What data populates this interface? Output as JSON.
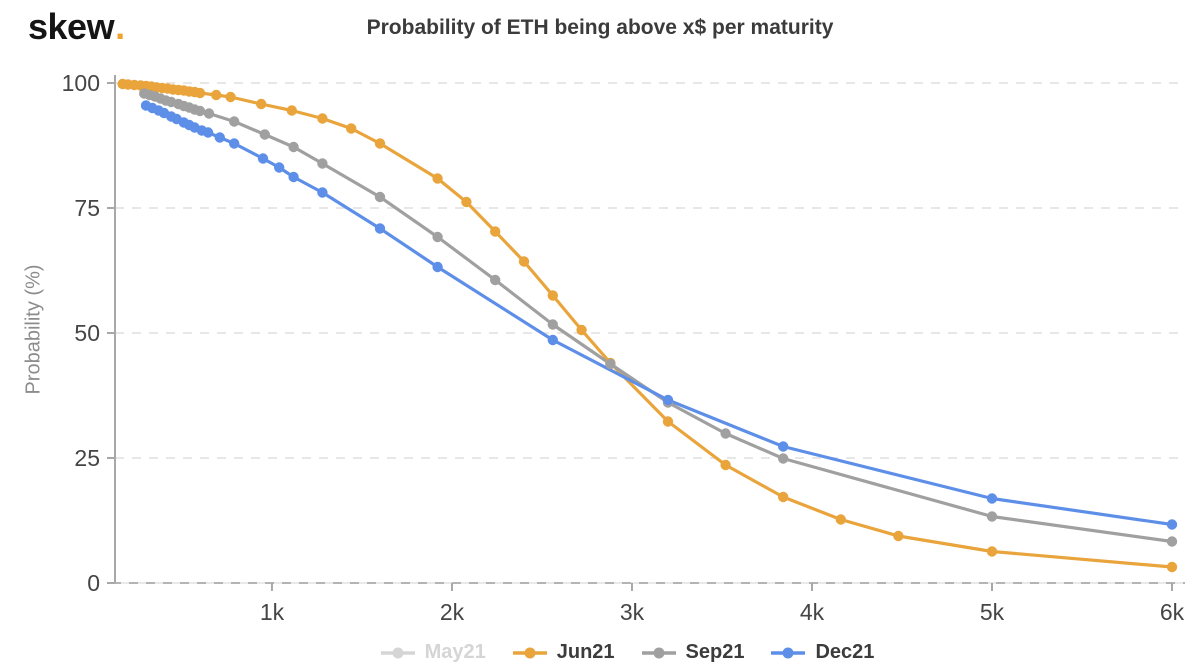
{
  "logo": {
    "text": "skew",
    "dot": "."
  },
  "title": "Probability of ETH being above x$ per maturity",
  "chart_data": {
    "type": "line",
    "title": "Probability of ETH being above x$ per maturity",
    "xlabel": "",
    "ylabel": "Probability (%)",
    "xlim": [
      128,
      6050
    ],
    "ylim": [
      0,
      100
    ],
    "grid": "horizontal-dashed",
    "legend_position": "bottom",
    "x_ticks": [
      {
        "value": 1000,
        "label": "1k"
      },
      {
        "value": 2000,
        "label": "2k"
      },
      {
        "value": 3000,
        "label": "3k"
      },
      {
        "value": 4000,
        "label": "4k"
      },
      {
        "value": 5000,
        "label": "5k"
      },
      {
        "value": 6000,
        "label": "6k"
      }
    ],
    "y_ticks": [
      {
        "value": 0,
        "label": "0"
      },
      {
        "value": 25,
        "label": "25"
      },
      {
        "value": 50,
        "label": "50"
      },
      {
        "value": 75,
        "label": "75"
      },
      {
        "value": 100,
        "label": "100"
      }
    ],
    "colors": {
      "axis": "#a8a8a8",
      "grid": "#e7e7e7",
      "tick_text": "#454545",
      "legend_active_text": "#3c3c3c",
      "logo_dot": "#f0a32c"
    },
    "series": [
      {
        "name": "May21",
        "color": "#d5d5d5",
        "hidden": true,
        "points": []
      },
      {
        "name": "Jun21",
        "color": "#e9a43c",
        "hidden": false,
        "points": [
          [
            170,
            99.8
          ],
          [
            200,
            99.7
          ],
          [
            235,
            99.6
          ],
          [
            270,
            99.5
          ],
          [
            300,
            99.4
          ],
          [
            330,
            99.3
          ],
          [
            360,
            99.1
          ],
          [
            390,
            99.0
          ],
          [
            420,
            98.9
          ],
          [
            450,
            98.7
          ],
          [
            480,
            98.6
          ],
          [
            510,
            98.5
          ],
          [
            540,
            98.3
          ],
          [
            570,
            98.2
          ],
          [
            600,
            98.0
          ],
          [
            690,
            97.6
          ],
          [
            770,
            97.2
          ],
          [
            940,
            95.8
          ],
          [
            1110,
            94.5
          ],
          [
            1280,
            92.9
          ],
          [
            1440,
            90.9
          ],
          [
            1600,
            87.9
          ],
          [
            1920,
            80.9
          ],
          [
            2080,
            76.2
          ],
          [
            2240,
            70.3
          ],
          [
            2400,
            64.3
          ],
          [
            2560,
            57.5
          ],
          [
            2720,
            50.6
          ],
          [
            2880,
            44.0
          ],
          [
            3200,
            32.3
          ],
          [
            3520,
            23.6
          ],
          [
            3840,
            17.2
          ],
          [
            4160,
            12.7
          ],
          [
            4480,
            9.4
          ],
          [
            5000,
            6.3
          ],
          [
            6000,
            3.2
          ]
        ]
      },
      {
        "name": "Sep21",
        "color": "#a0a0a0",
        "hidden": false,
        "points": [
          [
            290,
            97.9
          ],
          [
            320,
            97.6
          ],
          [
            350,
            97.3
          ],
          [
            380,
            96.9
          ],
          [
            410,
            96.5
          ],
          [
            440,
            96.2
          ],
          [
            480,
            95.8
          ],
          [
            510,
            95.4
          ],
          [
            540,
            95.1
          ],
          [
            570,
            94.7
          ],
          [
            600,
            94.4
          ],
          [
            650,
            93.9
          ],
          [
            790,
            92.3
          ],
          [
            960,
            89.7
          ],
          [
            1120,
            87.2
          ],
          [
            1280,
            83.9
          ],
          [
            1600,
            77.2
          ],
          [
            1920,
            69.2
          ],
          [
            2240,
            60.6
          ],
          [
            2560,
            51.7
          ],
          [
            2880,
            43.8
          ],
          [
            3200,
            36.1
          ],
          [
            3520,
            29.9
          ],
          [
            3840,
            24.9
          ],
          [
            5000,
            13.3
          ],
          [
            6000,
            8.3
          ]
        ]
      },
      {
        "name": "Dec21",
        "color": "#5e8fe8",
        "hidden": false,
        "points": [
          [
            300,
            95.5
          ],
          [
            335,
            95.0
          ],
          [
            370,
            94.5
          ],
          [
            400,
            94.0
          ],
          [
            440,
            93.3
          ],
          [
            470,
            92.8
          ],
          [
            510,
            92.1
          ],
          [
            540,
            91.6
          ],
          [
            570,
            91.1
          ],
          [
            610,
            90.5
          ],
          [
            645,
            90.1
          ],
          [
            710,
            89.1
          ],
          [
            790,
            87.9
          ],
          [
            950,
            84.9
          ],
          [
            1040,
            83.1
          ],
          [
            1120,
            81.2
          ],
          [
            1280,
            78.1
          ],
          [
            1600,
            70.9
          ],
          [
            1920,
            63.2
          ],
          [
            2560,
            48.6
          ],
          [
            3200,
            36.6
          ],
          [
            3840,
            27.3
          ],
          [
            5000,
            16.9
          ],
          [
            6000,
            11.7
          ]
        ]
      }
    ]
  }
}
